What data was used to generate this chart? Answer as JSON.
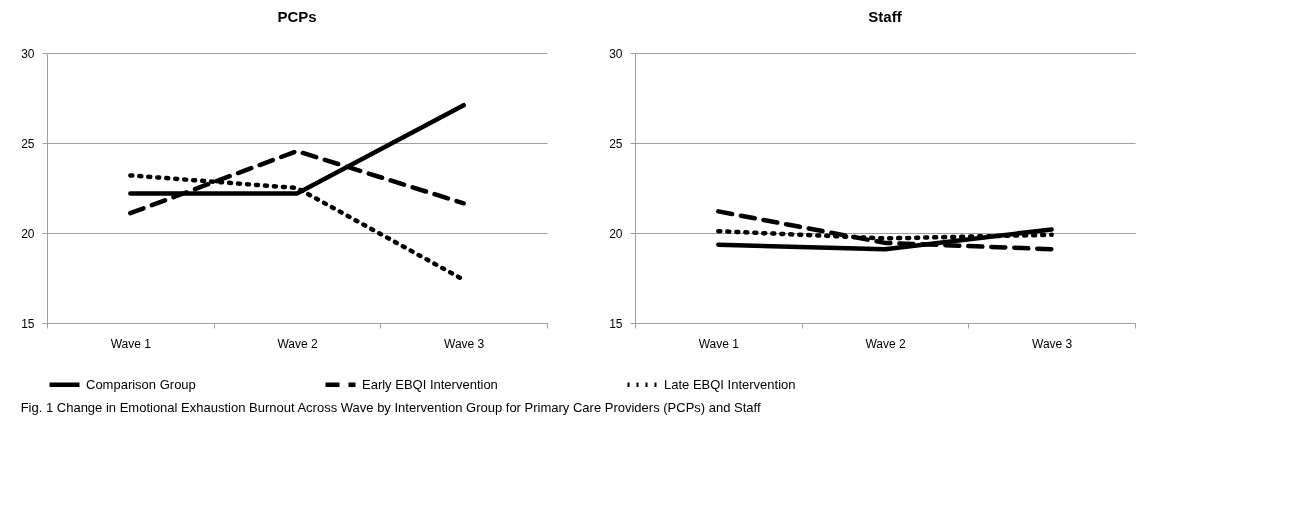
{
  "chart_data": [
    {
      "type": "line",
      "title": "PCPs",
      "categories": [
        "Wave 1",
        "Wave 2",
        "Wave 3"
      ],
      "ylim": [
        15,
        30
      ],
      "yticks": [
        15,
        20,
        25,
        30
      ],
      "grid": "y",
      "legend": "bottom",
      "marker": "none",
      "series": [
        {
          "name": "Comparison Group",
          "color": "#000000",
          "line_style": "solid",
          "values": [
            22.2,
            22.2,
            27.1
          ]
        },
        {
          "name": "Early EBQI Intervention",
          "color": "#000000",
          "line_style": "dashed",
          "values": [
            21.1,
            24.55,
            21.65
          ]
        },
        {
          "name": "Late EBQI Intervention",
          "color": "#000000",
          "line_style": "dotted",
          "values": [
            23.2,
            22.5,
            17.4
          ]
        }
      ],
      "annotations": [
        "Fig. 1 Change in Emotional Exhaustion Burnout Across Wave by Intervention Group for Primary Care Providers (PCPs) and Staff"
      ]
    },
    {
      "type": "line",
      "title": "Staff",
      "categories": [
        "Wave 1",
        "Wave 2",
        "Wave 3"
      ],
      "ylim": [
        15,
        30
      ],
      "yticks": [
        15,
        20,
        25,
        30
      ],
      "grid": "y",
      "legend": "bottom",
      "marker": "none",
      "series": [
        {
          "name": "Comparison Group",
          "color": "#000000",
          "line_style": "solid",
          "values": [
            19.35,
            19.1,
            20.2
          ]
        },
        {
          "name": "Early EBQI Intervention",
          "color": "#000000",
          "line_style": "dashed",
          "values": [
            21.2,
            19.45,
            19.1
          ]
        },
        {
          "name": "Late EBQI Intervention",
          "color": "#000000",
          "line_style": "dotted",
          "values": [
            20.1,
            19.7,
            19.9
          ]
        }
      ]
    }
  ]
}
